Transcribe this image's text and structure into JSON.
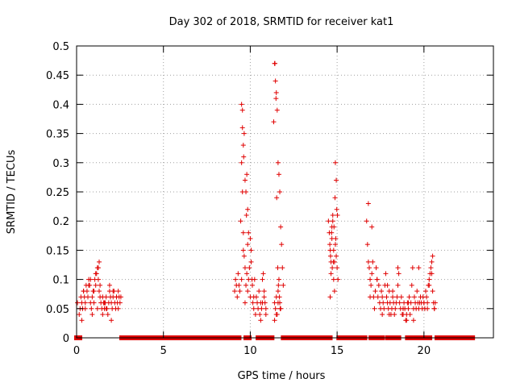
{
  "chart_data": {
    "type": "scatter",
    "title": "Day 302 of 2018, SRMTID for receiver kat1",
    "xlabel": "GPS time / hours",
    "ylabel": "SRMTID / TECUs",
    "xlim": [
      0,
      24
    ],
    "ylim": [
      0,
      0.5
    ],
    "grid": true,
    "marker": "+",
    "color": "#e00000",
    "x_ticks": [
      0,
      5,
      10,
      15,
      20
    ],
    "x_tick_labels": [
      "0",
      "5",
      "10",
      "15",
      "20"
    ],
    "y_ticks": [
      0,
      0.05,
      0.1,
      0.15,
      0.2,
      0.25,
      0.3,
      0.35,
      0.4,
      0.45,
      0.5
    ],
    "y_tick_labels": [
      "0",
      "0.05",
      "0.1",
      "0.15",
      "0.2",
      "0.25",
      "0.3",
      "0.35",
      "0.4",
      "0.45",
      "0.5"
    ],
    "series": [
      {
        "name": "SRMTID",
        "x": [
          0.05,
          0.15,
          0.2,
          0.25,
          0.3,
          0.35,
          0.4,
          0.45,
          0.5,
          0.55,
          0.6,
          0.65,
          0.7,
          0.75,
          0.8,
          0.85,
          0.9,
          0.95,
          1.0,
          1.05,
          1.1,
          1.15,
          1.2,
          1.25,
          1.3,
          1.35,
          1.4,
          1.45,
          1.5,
          1.55,
          1.6,
          1.65,
          1.7,
          1.75,
          1.8,
          1.85,
          1.9,
          1.95,
          2.0,
          2.05,
          2.1,
          2.15,
          2.2,
          2.25,
          2.3,
          2.35,
          2.4,
          2.45,
          2.5,
          2.55,
          0.3,
          0.5,
          0.7,
          0.9,
          1.1,
          1.3,
          1.5,
          1.7,
          1.9,
          2.1,
          2.3,
          0.4,
          0.8,
          1.2,
          1.6,
          2.0,
          2.4,
          1.0,
          1.25,
          1.35,
          9.1,
          9.15,
          9.2,
          9.25,
          9.3,
          9.35,
          9.4,
          9.45,
          9.5,
          9.5,
          9.55,
          9.55,
          9.6,
          9.6,
          9.65,
          9.65,
          9.7,
          9.7,
          9.75,
          9.75,
          9.8,
          9.8,
          9.85,
          9.85,
          9.9,
          9.9,
          9.95,
          10.0,
          10.0,
          10.05,
          10.1,
          10.15,
          10.2,
          10.25,
          10.3,
          10.35,
          10.4,
          10.45,
          10.5,
          10.55,
          10.6,
          10.65,
          10.7,
          10.75,
          10.8,
          10.85,
          10.9,
          9.55,
          9.62,
          9.7,
          9.78,
          9.85,
          10.05,
          10.12,
          10.2,
          10.6,
          10.7,
          10.8,
          10.9,
          9.5,
          9.6,
          11.35,
          11.4,
          11.45,
          11.5,
          11.55,
          11.6,
          11.65,
          11.7,
          11.75,
          11.8,
          11.85,
          11.9,
          11.4,
          11.45,
          11.5,
          11.55,
          11.6,
          11.65,
          11.7,
          11.75,
          11.42,
          11.48,
          11.52,
          11.58,
          11.62,
          11.68,
          11.72,
          11.4,
          11.5,
          11.6,
          14.5,
          14.55,
          14.6,
          14.65,
          14.7,
          14.75,
          14.8,
          14.85,
          14.9,
          14.95,
          15.0,
          15.05,
          14.6,
          14.65,
          14.7,
          14.75,
          14.8,
          14.85,
          14.9,
          14.95,
          14.58,
          14.68,
          14.78,
          14.88,
          14.98,
          14.62,
          14.72,
          14.82,
          14.92,
          15.02,
          16.7,
          16.75,
          16.8,
          16.85,
          16.9,
          16.95,
          17.0,
          17.05,
          17.1,
          17.15,
          17.2,
          17.25,
          17.3,
          17.35,
          17.4,
          17.45,
          17.5,
          17.55,
          17.6,
          17.65,
          17.7,
          17.75,
          17.8,
          17.85,
          17.9,
          17.95,
          18.0,
          18.05,
          18.1,
          18.15,
          18.2,
          18.25,
          18.3,
          18.35,
          18.4,
          18.45,
          18.5,
          18.55,
          18.6,
          18.65,
          18.7,
          18.75,
          18.8,
          18.85,
          18.9,
          18.95,
          19.0,
          19.05,
          19.1,
          19.15,
          19.2,
          19.25,
          19.3,
          19.35,
          19.4,
          19.45,
          19.5,
          19.55,
          19.6,
          19.65,
          19.7,
          19.75,
          19.8,
          19.85,
          19.9,
          19.95,
          20.0,
          20.05,
          20.1,
          20.15,
          20.2,
          20.25,
          20.3,
          20.35,
          20.4,
          20.45,
          20.5,
          20.55,
          20.6,
          20.65,
          16.8,
          17.0,
          17.3,
          17.6,
          17.9,
          18.2,
          18.5,
          18.8,
          19.1,
          19.4,
          19.7,
          20.0,
          20.3,
          20.5,
          20.6,
          16.9,
          18.0,
          19.0,
          20.2,
          20.45
        ],
        "y": [
          0.06,
          0.04,
          0.05,
          0.07,
          0.06,
          0.05,
          0.08,
          0.07,
          0.06,
          0.09,
          0.08,
          0.07,
          0.1,
          0.09,
          0.06,
          0.05,
          0.07,
          0.08,
          0.06,
          0.1,
          0.09,
          0.11,
          0.12,
          0.1,
          0.08,
          0.07,
          0.06,
          0.05,
          0.07,
          0.06,
          0.05,
          0.06,
          0.07,
          0.05,
          0.04,
          0.06,
          0.08,
          0.07,
          0.06,
          0.05,
          0.07,
          0.08,
          0.06,
          0.05,
          0.07,
          0.06,
          0.08,
          0.07,
          0.06,
          0.07,
          0.03,
          0.05,
          0.09,
          0.04,
          0.11,
          0.13,
          0.04,
          0.05,
          0.09,
          0.08,
          0.07,
          0.08,
          0.1,
          0.05,
          0.06,
          0.03,
          0.05,
          0.08,
          0.12,
          0.09,
          0.08,
          0.1,
          0.09,
          0.07,
          0.11,
          0.09,
          0.08,
          0.2,
          0.3,
          0.4,
          0.36,
          0.25,
          0.33,
          0.18,
          0.35,
          0.14,
          0.12,
          0.06,
          0.25,
          0.09,
          0.28,
          0.11,
          0.22,
          0.08,
          0.18,
          0.1,
          0.12,
          0.17,
          0.07,
          0.15,
          0.1,
          0.06,
          0.05,
          0.1,
          0.04,
          0.07,
          0.06,
          0.05,
          0.08,
          0.04,
          0.06,
          0.05,
          0.1,
          0.11,
          0.07,
          0.06,
          0.05,
          0.39,
          0.31,
          0.27,
          0.21,
          0.16,
          0.13,
          0.09,
          0.07,
          0.03,
          0.06,
          0.08,
          0.04,
          0.1,
          0.15,
          0.37,
          0.47,
          0.44,
          0.42,
          0.39,
          0.3,
          0.28,
          0.25,
          0.19,
          0.16,
          0.12,
          0.09,
          0.06,
          0.05,
          0.07,
          0.04,
          0.08,
          0.1,
          0.06,
          0.05,
          0.47,
          0.41,
          0.24,
          0.12,
          0.09,
          0.07,
          0.05,
          0.03,
          0.04,
          0.06,
          0.2,
          0.18,
          0.15,
          0.13,
          0.19,
          0.21,
          0.1,
          0.08,
          0.16,
          0.14,
          0.12,
          0.1,
          0.07,
          0.11,
          0.17,
          0.2,
          0.15,
          0.13,
          0.3,
          0.27,
          0.16,
          0.18,
          0.13,
          0.24,
          0.22,
          0.14,
          0.12,
          0.19,
          0.17,
          0.21,
          0.2,
          0.16,
          0.13,
          0.12,
          0.1,
          0.09,
          0.11,
          0.13,
          0.07,
          0.05,
          0.08,
          0.12,
          0.1,
          0.07,
          0.09,
          0.06,
          0.05,
          0.08,
          0.07,
          0.06,
          0.05,
          0.09,
          0.11,
          0.07,
          0.06,
          0.05,
          0.08,
          0.06,
          0.04,
          0.05,
          0.07,
          0.06,
          0.04,
          0.05,
          0.06,
          0.07,
          0.09,
          0.11,
          0.06,
          0.05,
          0.07,
          0.04,
          0.05,
          0.06,
          0.05,
          0.03,
          0.04,
          0.06,
          0.05,
          0.07,
          0.04,
          0.06,
          0.09,
          0.12,
          0.05,
          0.07,
          0.06,
          0.05,
          0.08,
          0.06,
          0.05,
          0.06,
          0.07,
          0.06,
          0.05,
          0.07,
          0.06,
          0.05,
          0.08,
          0.07,
          0.06,
          0.09,
          0.1,
          0.11,
          0.12,
          0.13,
          0.08,
          0.06,
          0.05,
          0.06,
          0.23,
          0.19,
          0.1,
          0.04,
          0.09,
          0.08,
          0.12,
          0.04,
          0.06,
          0.03,
          0.12,
          0.06,
          0.09,
          0.14,
          0.05,
          0.07,
          0.04,
          0.03,
          0.05,
          0.11
        ]
      },
      {
        "name": "zero_markers",
        "x_ranges": [
          [
            0,
            0.15
          ],
          [
            2.6,
            9.35
          ],
          [
            9.75,
            9.9
          ],
          [
            10.45,
            10.55
          ],
          [
            10.85,
            11.25
          ],
          [
            11.9,
            14.6
          ],
          [
            15.1,
            16.6
          ],
          [
            16.95,
            17.1
          ],
          [
            17.4,
            17.6
          ],
          [
            17.9,
            18.05
          ],
          [
            18.35,
            18.55
          ],
          [
            19.05,
            19.2
          ],
          [
            19.5,
            19.6
          ],
          [
            19.95,
            20.05
          ],
          [
            20.15,
            20.3
          ],
          [
            20.75,
            22.8
          ]
        ],
        "y": 0
      }
    ]
  }
}
